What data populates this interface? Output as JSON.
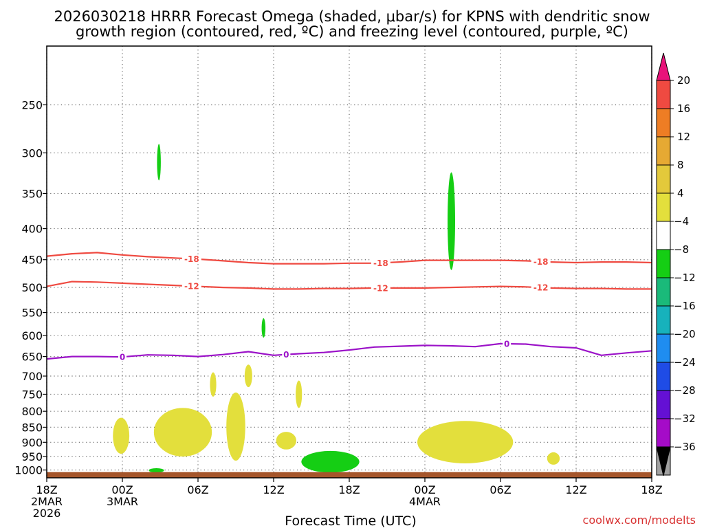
{
  "chart_data": {
    "type": "heatmap",
    "title_lines": [
      "2026030218 HRRR Forecast Omega (shaded, μbar/s) for KPNS with dendritic snow",
      "growth region (contoured, red, ºC) and freezing level (contoured, purple, ºC)"
    ],
    "xlabel": "Forecast Time (UTC)",
    "ylabel": "",
    "credit": "coolwx.com/modelts",
    "x_axis": {
      "unit": "forecast hour",
      "range": [
        0,
        48
      ],
      "ticks": [
        {
          "hour": 0,
          "lines": [
            "18Z",
            "2MAR",
            "2026"
          ]
        },
        {
          "hour": 6,
          "lines": [
            "00Z",
            "3MAR"
          ]
        },
        {
          "hour": 12,
          "lines": [
            "06Z"
          ]
        },
        {
          "hour": 18,
          "lines": [
            "12Z"
          ]
        },
        {
          "hour": 24,
          "lines": [
            "18Z"
          ]
        },
        {
          "hour": 30,
          "lines": [
            "00Z",
            "4MAR"
          ]
        },
        {
          "hour": 36,
          "lines": [
            "06Z"
          ]
        },
        {
          "hour": 42,
          "lines": [
            "12Z"
          ]
        },
        {
          "hour": 48,
          "lines": [
            "18Z"
          ]
        }
      ]
    },
    "y_axis": {
      "unit": "hPa",
      "scale": "log",
      "reversed": true,
      "range": [
        1030,
        200
      ],
      "ticks": [
        250,
        300,
        350,
        400,
        450,
        500,
        550,
        600,
        650,
        700,
        750,
        800,
        850,
        900,
        950,
        1000
      ]
    },
    "grid": true,
    "colorbar": {
      "unit": "μbar/s",
      "levels": [
        20,
        16,
        12,
        8,
        4,
        -4,
        -8,
        -12,
        -16,
        -20,
        -24,
        -28,
        -32,
        -36
      ],
      "colors": [
        "#e8137a",
        "#ef4a41",
        "#ee7d24",
        "#e6a933",
        "#e3c93b",
        "#e3df3c",
        "#ffffff",
        "#15ce14",
        "#1aba7a",
        "#17b2bc",
        "#1f8df0",
        "#1f4ce6",
        "#6410d4",
        "#a50bc8",
        "#a2a2a2",
        "#000000"
      ]
    },
    "omega_regions": [
      {
        "color": "#15ce14",
        "hour_center": 8.9,
        "hour_halfwidth": 0.15,
        "hpa_top": 290,
        "hpa_bottom": 333
      },
      {
        "color": "#15ce14",
        "hour_center": 32.1,
        "hour_halfwidth": 0.3,
        "hpa_top": 323,
        "hpa_bottom": 468
      },
      {
        "color": "#15ce14",
        "hour_center": 17.2,
        "hour_halfwidth": 0.15,
        "hpa_top": 562,
        "hpa_bottom": 605
      },
      {
        "color": "#15ce14",
        "hour_center": 8.7,
        "hour_halfwidth": 0.6,
        "hpa_top": 993,
        "hpa_bottom": 1010
      },
      {
        "color": "#15ce14",
        "hour_center": 22.5,
        "hour_halfwidth": 2.3,
        "hpa_top": 930,
        "hpa_bottom": 1010
      },
      {
        "color": "#e3df3c",
        "hour_center": 5.9,
        "hour_halfwidth": 0.65,
        "hpa_top": 820,
        "hpa_bottom": 940
      },
      {
        "color": "#e3df3c",
        "hour_center": 10.8,
        "hour_halfwidth": 2.3,
        "hpa_top": 790,
        "hpa_bottom": 950
      },
      {
        "color": "#e3df3c",
        "hour_center": 13.2,
        "hour_halfwidth": 0.25,
        "hpa_top": 690,
        "hpa_bottom": 757
      },
      {
        "color": "#e3df3c",
        "hour_center": 15.0,
        "hour_halfwidth": 0.75,
        "hpa_top": 745,
        "hpa_bottom": 965
      },
      {
        "color": "#e3df3c",
        "hour_center": 16.0,
        "hour_halfwidth": 0.3,
        "hpa_top": 670,
        "hpa_bottom": 730
      },
      {
        "color": "#e3df3c",
        "hour_center": 20.0,
        "hour_halfwidth": 0.25,
        "hpa_top": 712,
        "hpa_bottom": 790
      },
      {
        "color": "#e3df3c",
        "hour_center": 19.0,
        "hour_halfwidth": 0.8,
        "hpa_top": 865,
        "hpa_bottom": 925
      },
      {
        "color": "#e3df3c",
        "hour_center": 33.2,
        "hour_halfwidth": 3.8,
        "hpa_top": 830,
        "hpa_bottom": 975
      },
      {
        "color": "#e3df3c",
        "hour_center": 40.2,
        "hour_halfwidth": 0.5,
        "hpa_top": 935,
        "hpa_bottom": 980
      }
    ],
    "surface_strip": {
      "color": "#a5552a",
      "hpa_top": 1008,
      "hpa_bottom": 1030
    },
    "contours": [
      {
        "name": "dendritic growth -18",
        "color": "#ef4a41",
        "label": "-18",
        "hours": [
          0,
          2,
          4,
          6,
          8,
          10,
          12,
          14,
          16,
          18,
          20,
          22,
          24,
          26,
          28,
          30,
          32,
          34,
          36,
          38,
          40,
          42,
          44,
          46,
          48
        ],
        "hpa": [
          444,
          440,
          438,
          442,
          445,
          447,
          449,
          452,
          455,
          457,
          457,
          457,
          456,
          456,
          454,
          451,
          451,
          451,
          451,
          452,
          454,
          455,
          454,
          454,
          455
        ],
        "label_hours": [
          11.5,
          26.5,
          39.2
        ]
      },
      {
        "name": "dendritic growth -12",
        "color": "#ef4a41",
        "label": "-12",
        "hours": [
          0,
          2,
          4,
          6,
          8,
          10,
          12,
          14,
          16,
          18,
          20,
          22,
          24,
          26,
          28,
          30,
          32,
          34,
          36,
          38,
          40,
          42,
          44,
          46,
          48
        ],
        "hpa": [
          498,
          489,
          490,
          492,
          494,
          496,
          498,
          500,
          501,
          503,
          503,
          502,
          502,
          501,
          501,
          501,
          500,
          499,
          498,
          499,
          501,
          502,
          502,
          503,
          503
        ],
        "label_hours": [
          11.5,
          26.5,
          39.2
        ]
      },
      {
        "name": "freezing level 0",
        "color": "#9b12c8",
        "label": "0",
        "hours": [
          0,
          2,
          4,
          6,
          8,
          10,
          12,
          14,
          16,
          18,
          20,
          22,
          24,
          26,
          28,
          30,
          32,
          34,
          36,
          38,
          40,
          42,
          44,
          46,
          48
        ],
        "hpa": [
          656,
          650,
          650,
          651,
          646,
          647,
          650,
          645,
          638,
          647,
          643,
          640,
          634,
          627,
          625,
          623,
          624,
          626,
          619,
          620,
          626,
          629,
          647,
          641,
          636
        ],
        "label_hours": [
          6.0,
          19.0,
          36.5
        ]
      }
    ]
  }
}
